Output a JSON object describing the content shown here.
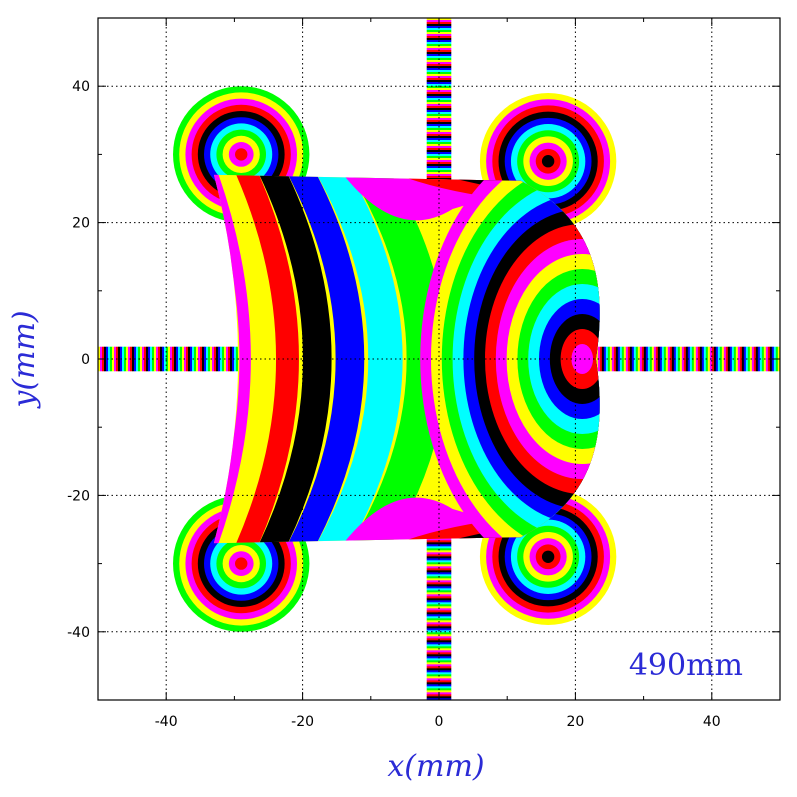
{
  "chart_data": {
    "type": "heatmap",
    "title": "",
    "xlabel": "x(mm)",
    "ylabel": "y(mm)",
    "xlim": [
      -50,
      50
    ],
    "ylim": [
      -50,
      50
    ],
    "grid": true,
    "x_ticks": [
      -40,
      -20,
      0,
      20,
      40
    ],
    "y_ticks": [
      40,
      20,
      0,
      -20,
      -40
    ],
    "annotation": "490mm",
    "palette": [
      "#ffff00",
      "#ff00ff",
      "#ff0000",
      "#000000",
      "#0000ff",
      "#00ffff",
      "#00ff00"
    ],
    "central_region": {
      "x_left_at_top": -33,
      "x_right_at_top": 12,
      "y_top": 27,
      "y_bottom": -27,
      "x_inner_left": -23,
      "x_tip": 23,
      "center_of_rings": [
        21,
        0
      ]
    },
    "lobes": [
      {
        "name": "top-left",
        "center": [
          -29,
          30
        ],
        "radius": 10,
        "core_color": "#ff0000"
      },
      {
        "name": "top-right",
        "center": [
          16,
          29
        ],
        "radius": 10,
        "core_color": "#000000"
      },
      {
        "name": "bottom-left",
        "center": [
          -29,
          -30
        ],
        "radius": 10,
        "core_color": "#ff0000"
      },
      {
        "name": "bottom-right",
        "center": [
          16,
          -29
        ],
        "radius": 10,
        "core_color": "#000000"
      }
    ],
    "bands": [
      {
        "name": "left-band",
        "x": [
          -50,
          -23
        ],
        "y": [
          -1.8,
          1.8
        ],
        "orientation": "horizontal"
      },
      {
        "name": "right-band",
        "x": [
          23,
          50
        ],
        "y": [
          -1.8,
          1.8
        ],
        "orientation": "horizontal"
      },
      {
        "name": "top-band",
        "x": [
          -1.8,
          1.8
        ],
        "y": [
          26,
          50
        ],
        "orientation": "vertical"
      },
      {
        "name": "bottom-band",
        "x": [
          -1.8,
          1.8
        ],
        "y": [
          -50,
          -26
        ],
        "orientation": "vertical"
      }
    ]
  }
}
